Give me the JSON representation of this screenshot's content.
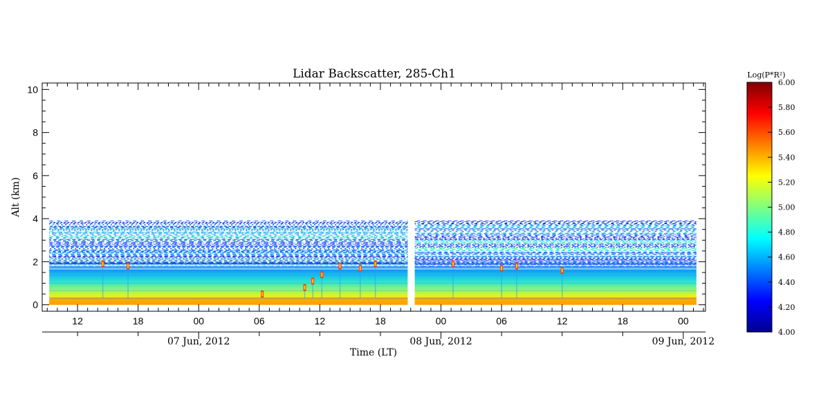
{
  "chart_data": {
    "type": "heatmap",
    "title": "Lidar Backscatter, 285-Ch1",
    "xlabel": "Time (LT)",
    "ylabel": "Alt (km)",
    "ylim": [
      -0.3,
      10.3
    ],
    "y_ticks": [
      "0",
      "2",
      "4",
      "6",
      "8",
      "10"
    ],
    "x_ticks": [
      "12",
      "18",
      "00",
      "06",
      "12",
      "18",
      "00",
      "06",
      "12",
      "18",
      "00"
    ],
    "x_tick_hours": [
      12,
      18,
      24,
      30,
      36,
      42,
      48,
      54,
      60,
      66,
      72
    ],
    "x_range_hours": [
      8.5,
      74.2
    ],
    "date_labels": [
      "07 Jun, 2012",
      "08 Jun, 2012",
      "09 Jun, 2012"
    ],
    "date_hours": [
      24,
      48,
      72
    ],
    "data_gap_hours": [
      44.7,
      45.4
    ],
    "data_extent_hours": [
      [
        9.2,
        44.7
      ],
      [
        45.4,
        73.3
      ]
    ],
    "signal_top_km": 3.9,
    "boundary_layer_top_km": 1.7,
    "cloud_features": [
      {
        "hour": 14.5,
        "alt_km": 1.9
      },
      {
        "hour": 17.0,
        "alt_km": 1.8
      },
      {
        "hour": 30.3,
        "alt_km": 0.5
      },
      {
        "hour": 34.5,
        "alt_km": 0.8
      },
      {
        "hour": 35.3,
        "alt_km": 1.1
      },
      {
        "hour": 36.2,
        "alt_km": 1.4
      },
      {
        "hour": 38.0,
        "alt_km": 1.8
      },
      {
        "hour": 40.0,
        "alt_km": 1.7
      },
      {
        "hour": 41.5,
        "alt_km": 1.9
      },
      {
        "hour": 49.2,
        "alt_km": 1.9
      },
      {
        "hour": 54.0,
        "alt_km": 1.7
      },
      {
        "hour": 55.5,
        "alt_km": 1.8
      },
      {
        "hour": 60.0,
        "alt_km": 1.6
      }
    ],
    "colorbar": {
      "label": "Log(P*R²)",
      "min": 4.0,
      "max": 6.0,
      "ticks": [
        "4.00",
        "4.20",
        "4.40",
        "4.60",
        "4.80",
        "5.00",
        "5.20",
        "5.40",
        "5.60",
        "5.80",
        "6.00"
      ],
      "colormap": [
        "#00008f",
        "#0000ff",
        "#00ffff",
        "#ffff00",
        "#ff0000",
        "#800000"
      ]
    },
    "grid": false
  }
}
